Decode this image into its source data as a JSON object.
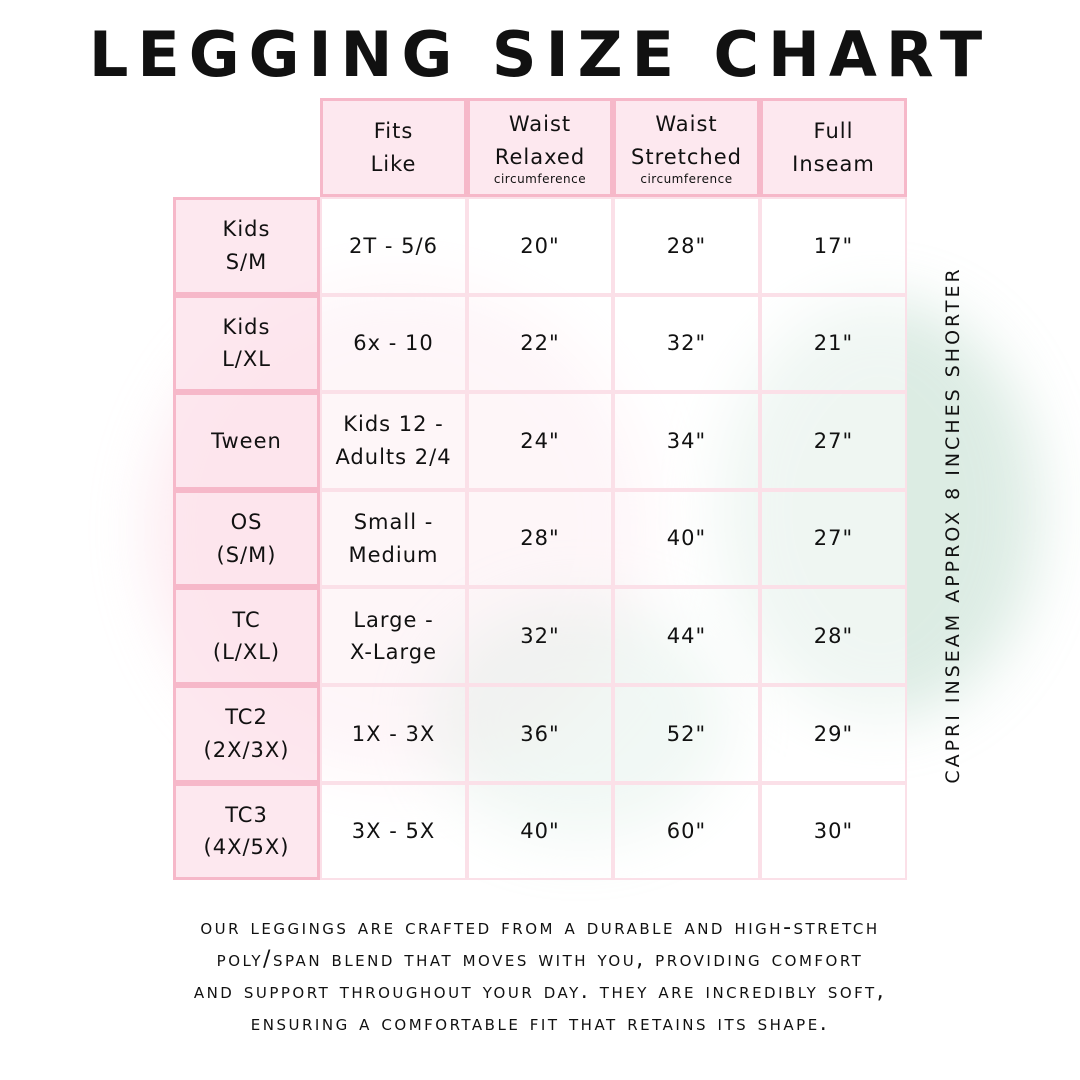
{
  "title": "LEGGING SIZE CHART",
  "headers": [
    {
      "label": "Fits\nLike",
      "sub": ""
    },
    {
      "label": "Waist\nRelaxed",
      "sub": "circumference"
    },
    {
      "label": "Waist\nStretched",
      "sub": "circumference"
    },
    {
      "label": "Full\nInseam",
      "sub": ""
    }
  ],
  "rows": [
    {
      "size": "Kids\nS/M",
      "fits_like": "2T - 5/6",
      "waist_relaxed": "20\"",
      "waist_stretched": "28\"",
      "full_inseam": "17\""
    },
    {
      "size": "Kids\nL/XL",
      "fits_like": "6x - 10",
      "waist_relaxed": "22\"",
      "waist_stretched": "32\"",
      "full_inseam": "21\""
    },
    {
      "size": "Tween",
      "fits_like": "Kids 12 -\nAdults 2/4",
      "waist_relaxed": "24\"",
      "waist_stretched": "34\"",
      "full_inseam": "27\""
    },
    {
      "size": "OS\n(S/M)",
      "fits_like": "Small -\nMedium",
      "waist_relaxed": "28\"",
      "waist_stretched": "40\"",
      "full_inseam": "27\""
    },
    {
      "size": "TC\n(L/XL)",
      "fits_like": "Large -\nX-Large",
      "waist_relaxed": "32\"",
      "waist_stretched": "44\"",
      "full_inseam": "28\""
    },
    {
      "size": "TC2\n(2X/3X)",
      "fits_like": "1X - 3X",
      "waist_relaxed": "36\"",
      "waist_stretched": "52\"",
      "full_inseam": "29\""
    },
    {
      "size": "TC3\n(4X/5X)",
      "fits_like": "3X - 5X",
      "waist_relaxed": "40\"",
      "waist_stretched": "60\"",
      "full_inseam": "30\""
    }
  ],
  "side_note": "CAPRI INSEAM APPROX 8 INCHES SHORTER",
  "description": [
    "OUR LEGGINGS ARE CRAFTED FROM A DURABLE AND HIGH-STRETCH",
    "POLY/SPAN BLEND THAT MOVES WITH YOU, PROVIDING COMFORT",
    "AND SUPPORT THROUGHOUT YOUR DAY. THEY ARE INCREDIBLY SOFT,",
    "ENSURING A COMFORTABLE FIT THAT RETAINS ITS SHAPE."
  ],
  "colors": {
    "border": "#f6b8c9",
    "header_fill": "#fde4ec",
    "text": "#111111"
  }
}
